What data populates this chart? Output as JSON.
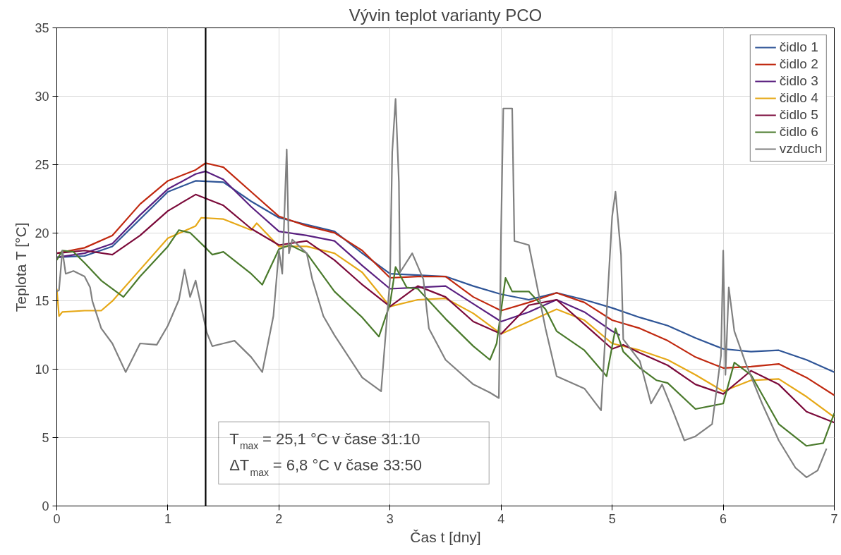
{
  "chart_data": {
    "type": "line",
    "title": "Vývin teplot varianty PCO",
    "xlabel": "Čas t [dny]",
    "ylabel": "Teplota T [°C]",
    "xlim": [
      0,
      7
    ],
    "ylim": [
      0,
      35
    ],
    "xticks": [
      0,
      1,
      2,
      3,
      4,
      5,
      6,
      7
    ],
    "yticks": [
      0,
      5,
      10,
      15,
      20,
      25,
      30,
      35
    ],
    "grid": true,
    "legend": "top right",
    "marker": "none",
    "line_style": "solid",
    "series": [
      {
        "name": "čidlo 1",
        "color": "#2f5597",
        "x": [
          0,
          0.25,
          0.5,
          0.75,
          1,
          1.25,
          1.5,
          1.75,
          2,
          2.25,
          2.5,
          2.75,
          3,
          3.25,
          3.5,
          3.75,
          4,
          4.25,
          4.5,
          4.75,
          5,
          5.25,
          5.5,
          5.75,
          6,
          6.25,
          6.5,
          6.75,
          7
        ],
        "values": [
          18.2,
          18.3,
          19.0,
          21.0,
          23.0,
          23.8,
          23.7,
          22.3,
          21.1,
          20.6,
          20.1,
          18.5,
          17.0,
          16.9,
          16.8,
          16.1,
          15.5,
          15.1,
          15.6,
          15.1,
          14.5,
          13.8,
          13.2,
          12.3,
          11.5,
          11.3,
          11.4,
          10.7,
          9.8
        ]
      },
      {
        "name": "čidlo 2",
        "color": "#c0280f",
        "x": [
          0,
          0.25,
          0.5,
          0.75,
          1,
          1.25,
          1.34,
          1.5,
          1.75,
          2,
          2.25,
          2.5,
          2.75,
          3,
          3.25,
          3.5,
          3.75,
          4,
          4.25,
          4.5,
          4.75,
          5,
          5.25,
          5.5,
          5.75,
          6,
          6.25,
          6.5,
          6.75,
          7
        ],
        "values": [
          18.5,
          18.9,
          19.8,
          22.1,
          23.8,
          24.6,
          25.1,
          24.8,
          23.0,
          21.2,
          20.5,
          20.0,
          18.7,
          16.7,
          16.8,
          16.8,
          15.3,
          14.3,
          14.9,
          15.6,
          14.9,
          13.6,
          13.0,
          12.1,
          10.9,
          10.1,
          10.2,
          10.4,
          9.4,
          8.1
        ]
      },
      {
        "name": "čidlo 3",
        "color": "#5a2080",
        "x": [
          0,
          0.25,
          0.5,
          0.75,
          1,
          1.25,
          1.34,
          1.5,
          1.75,
          2,
          2.25,
          2.5,
          2.75,
          3,
          3.25,
          3.5,
          3.75,
          4,
          4.25,
          4.5,
          4.75,
          5,
          5.07
        ],
        "values": [
          18.2,
          18.5,
          19.2,
          21.3,
          23.2,
          24.3,
          24.5,
          23.9,
          21.9,
          20.1,
          19.8,
          19.4,
          17.6,
          15.9,
          16.0,
          16.1,
          14.8,
          13.5,
          14.2,
          15.1,
          14.2,
          12.8,
          12.5
        ]
      },
      {
        "name": "čidlo 4",
        "color": "#e6a817",
        "x": [
          0,
          0.02,
          0.05,
          0.25,
          0.4,
          0.5,
          0.75,
          1,
          1.25,
          1.3,
          1.5,
          1.75,
          1.8,
          2,
          2.25,
          2.5,
          2.75,
          3,
          3.25,
          3.5,
          3.75,
          4,
          4.25,
          4.5,
          4.75,
          5,
          5.25,
          5.5,
          5.75,
          6,
          6.25,
          6.5,
          6.75,
          7
        ],
        "values": [
          15.9,
          13.9,
          14.2,
          14.3,
          14.3,
          15.0,
          17.3,
          19.6,
          20.5,
          21.1,
          21.0,
          20.2,
          20.7,
          19.0,
          19.0,
          18.5,
          17.1,
          14.6,
          15.1,
          15.2,
          14.1,
          12.6,
          13.5,
          14.4,
          13.6,
          11.9,
          11.4,
          10.7,
          9.6,
          8.4,
          9.2,
          9.3,
          8.0,
          6.5
        ]
      },
      {
        "name": "čidlo 5",
        "color": "#7b0a3a",
        "x": [
          0,
          0.25,
          0.5,
          0.75,
          1,
          1.25,
          1.5,
          1.75,
          2,
          2.25,
          2.5,
          2.75,
          3,
          3.25,
          3.5,
          3.75,
          4,
          4.25,
          4.5,
          4.75,
          5,
          5.1,
          5.25,
          5.5,
          5.75,
          6,
          6.25,
          6.5,
          6.75,
          7
        ],
        "values": [
          18.5,
          18.7,
          18.4,
          19.8,
          21.6,
          22.8,
          22.0,
          20.3,
          19.1,
          19.4,
          18.0,
          16.2,
          14.6,
          16.1,
          15.3,
          13.5,
          12.6,
          14.7,
          15.1,
          13.3,
          11.5,
          11.8,
          11.2,
          10.3,
          8.9,
          8.2,
          9.9,
          8.9,
          6.9,
          6.1
        ]
      },
      {
        "name": "čidlo 6",
        "color": "#4a7a2c",
        "x": [
          0,
          0.05,
          0.15,
          0.25,
          0.4,
          0.6,
          0.75,
          1,
          1.1,
          1.2,
          1.34,
          1.4,
          1.5,
          1.75,
          1.85,
          2,
          2.1,
          2.25,
          2.5,
          2.75,
          2.9,
          3,
          3.05,
          3.15,
          3.25,
          3.5,
          3.75,
          3.9,
          3.96,
          4.04,
          4.1,
          4.25,
          4.4,
          4.5,
          4.75,
          4.95,
          5.03,
          5.1,
          5.25,
          5.4,
          5.5,
          5.75,
          6,
          6.1,
          6.25,
          6.5,
          6.75,
          6.9,
          7
        ],
        "values": [
          18.0,
          18.7,
          18.6,
          17.8,
          16.5,
          15.3,
          16.8,
          19.0,
          20.2,
          20.0,
          18.9,
          18.4,
          18.6,
          17.0,
          16.2,
          18.8,
          19.1,
          18.5,
          15.7,
          13.8,
          12.4,
          14.8,
          17.5,
          16.0,
          15.9,
          13.7,
          11.7,
          10.7,
          11.9,
          16.7,
          15.7,
          15.7,
          14.4,
          12.8,
          11.4,
          9.5,
          13.0,
          11.3,
          10.1,
          9.2,
          9.0,
          7.1,
          7.5,
          10.5,
          9.6,
          6.0,
          4.4,
          4.6,
          6.8
        ]
      },
      {
        "name": "vzduch",
        "color": "#808080",
        "x": [
          0,
          0.02,
          0.05,
          0.08,
          0.15,
          0.25,
          0.3,
          0.32,
          0.4,
          0.5,
          0.62,
          0.75,
          0.9,
          1,
          1.1,
          1.15,
          1.2,
          1.25,
          1.35,
          1.4,
          1.5,
          1.6,
          1.75,
          1.85,
          1.95,
          2,
          2.03,
          2.07,
          2.09,
          2.12,
          2.25,
          2.3,
          2.4,
          2.5,
          2.75,
          2.92,
          3,
          3.02,
          3.05,
          3.08,
          3.09,
          3.2,
          3.3,
          3.35,
          3.5,
          3.75,
          3.9,
          3.98,
          4,
          4.02,
          4.1,
          4.12,
          4.25,
          4.4,
          4.5,
          4.75,
          4.9,
          5,
          5.03,
          5.08,
          5.1,
          5.25,
          5.35,
          5.45,
          5.55,
          5.65,
          5.75,
          5.9,
          5.98,
          6,
          6.02,
          6.05,
          6.1,
          6.2,
          6.35,
          6.5,
          6.65,
          6.75,
          6.85,
          6.93
        ],
        "values": [
          15.7,
          15.8,
          18.7,
          17.0,
          17.2,
          16.8,
          16.0,
          15.0,
          13.0,
          11.9,
          9.8,
          11.9,
          11.8,
          13.2,
          15.1,
          17.3,
          15.3,
          16.5,
          12.7,
          11.7,
          11.9,
          12.1,
          10.9,
          9.8,
          13.9,
          18.7,
          17.0,
          26.1,
          18.5,
          19.5,
          18.5,
          16.6,
          13.9,
          12.5,
          9.4,
          8.4,
          16.6,
          25.9,
          29.8,
          23.7,
          17.1,
          18.5,
          16.6,
          13.0,
          10.7,
          8.9,
          8.3,
          7.9,
          20.1,
          29.1,
          29.1,
          19.4,
          19.1,
          13.0,
          9.5,
          8.6,
          7.0,
          21.2,
          23.0,
          18.4,
          12.2,
          10.6,
          7.5,
          8.9,
          6.9,
          4.8,
          5.1,
          6.0,
          11.0,
          18.7,
          9.6,
          16.0,
          12.8,
          10.5,
          7.5,
          4.8,
          2.8,
          2.1,
          2.6,
          4.2
        ]
      }
    ],
    "ref_lines": [
      {
        "axis": "x",
        "value": 1.34,
        "color": "#000000"
      }
    ],
    "annotations": [
      "T$_{max}$ = 25,1 °C v čase 31:10",
      "ΔT$_{max}$ = 6,8 °C v čase 33:50"
    ]
  }
}
